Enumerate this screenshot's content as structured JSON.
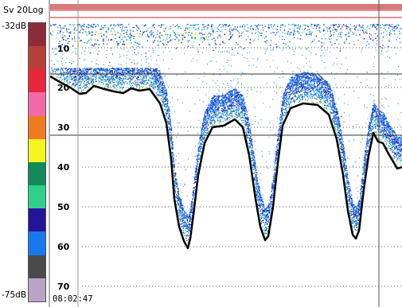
{
  "colorbar": {
    "title": "Sv 20Log",
    "top_label": "-32dB",
    "bottom_label": "-75dB",
    "colors": [
      "#8c2b3b",
      "#b5413a",
      "#e8273a",
      "#f06aa8",
      "#f07a20",
      "#f5f520",
      "#128a5a",
      "#2fd08a",
      "#22159a",
      "#1778f0",
      "#4a4a4a",
      "#b9a3c7"
    ]
  },
  "echogram": {
    "depth_ticks": [
      "10",
      "20",
      "30",
      "40",
      "50",
      "60",
      "70"
    ],
    "timestamp": "08:02:47",
    "bottom_line_color": "#000000",
    "surface_line_color": "#c0292b"
  }
}
